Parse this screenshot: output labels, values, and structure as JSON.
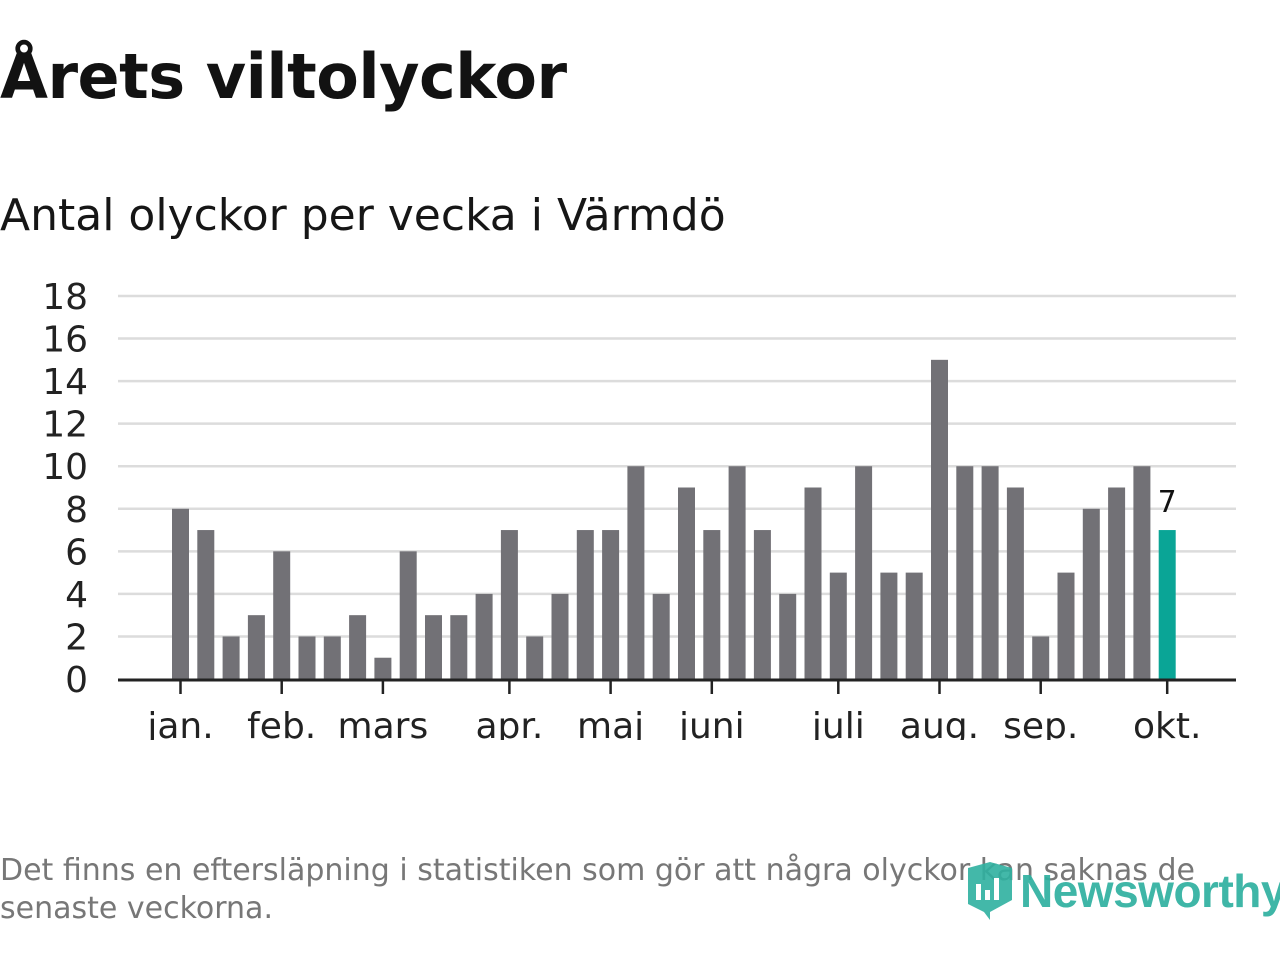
{
  "title": "Årets viltolyckor",
  "subtitle": "Antal olyckor per vecka i Värmdö",
  "footnote": "Det finns en eftersläpning i statistiken som gör att några olyckor kan saknas de senaste veckorna.",
  "logo_text": "Newsworthy",
  "colors": {
    "bar": "#727176",
    "highlight": "#0aa596",
    "grid": "#dcdcdc",
    "axis": "#222222"
  },
  "chart_data": {
    "type": "bar",
    "title": "Antal olyckor per vecka i Värmdö",
    "xlabel": "",
    "ylabel": "",
    "ylim": [
      0,
      18
    ],
    "yticks": [
      0,
      2,
      4,
      6,
      8,
      10,
      12,
      14,
      16,
      18
    ],
    "grid": true,
    "values": [
      8,
      7,
      2,
      3,
      6,
      2,
      2,
      3,
      1,
      6,
      3,
      3,
      4,
      7,
      2,
      4,
      7,
      7,
      10,
      4,
      9,
      7,
      10,
      7,
      4,
      9,
      5,
      10,
      5,
      5,
      15,
      10,
      10,
      9,
      2,
      5,
      8,
      9,
      10,
      7
    ],
    "highlight_index": 39,
    "highlight_label": "7",
    "month_labels": [
      {
        "label": "jan.",
        "week_index": 0
      },
      {
        "label": "feb.",
        "week_index": 4
      },
      {
        "label": "mars",
        "week_index": 8
      },
      {
        "label": "apr.",
        "week_index": 13
      },
      {
        "label": "maj",
        "week_index": 17
      },
      {
        "label": "juni",
        "week_index": 21
      },
      {
        "label": "juli",
        "week_index": 26
      },
      {
        "label": "aug.",
        "week_index": 30
      },
      {
        "label": "sep.",
        "week_index": 34
      },
      {
        "label": "okt.",
        "week_index": 39
      }
    ]
  }
}
